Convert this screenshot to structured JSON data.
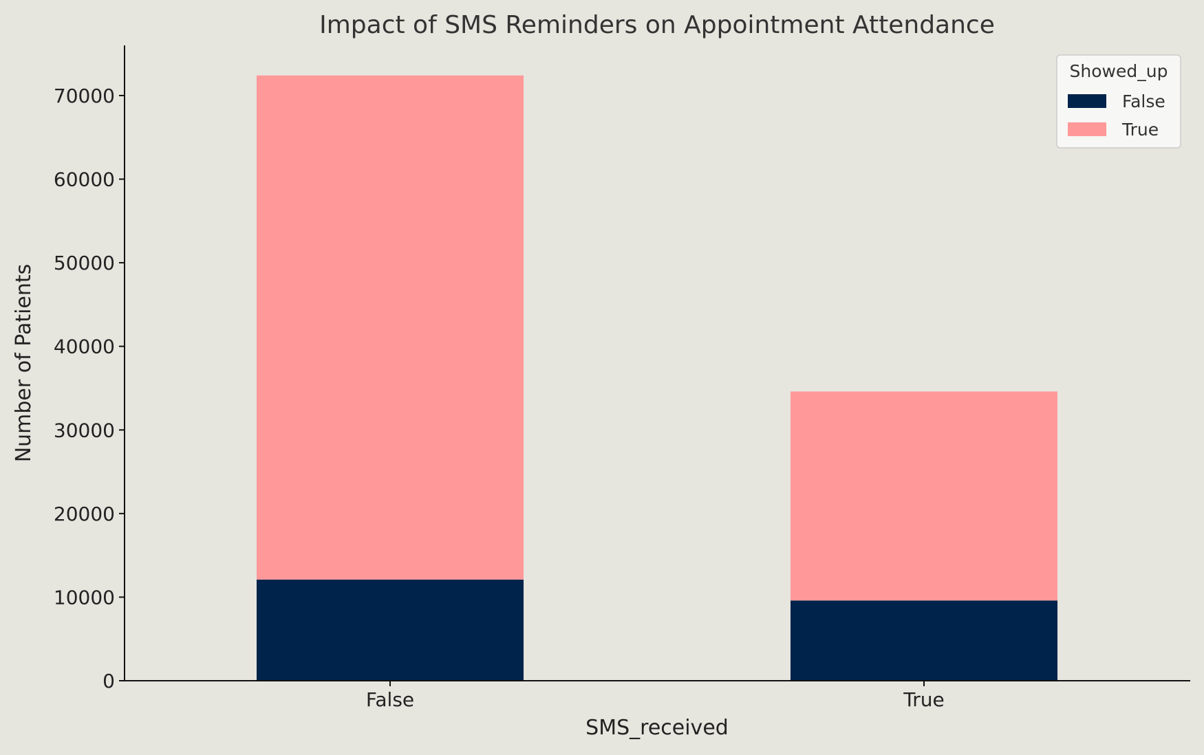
{
  "chart_data": {
    "type": "bar",
    "stacked": true,
    "title": "Impact of SMS Reminders on Appointment Attendance",
    "xlabel": "SMS_received",
    "ylabel": "Number of Patients",
    "categories": [
      "False",
      "True"
    ],
    "series": [
      {
        "name": "False",
        "values": [
          12100,
          9600
        ],
        "color": "#00234b"
      },
      {
        "name": "True",
        "values": [
          60300,
          25000
        ],
        "color": "#ff9999"
      }
    ],
    "ylim": [
      0,
      76000
    ],
    "yticks": [
      0,
      10000,
      20000,
      30000,
      40000,
      50000,
      60000,
      70000
    ],
    "legend": {
      "title": "Showed_up",
      "location": "top-right"
    },
    "grid": false
  }
}
